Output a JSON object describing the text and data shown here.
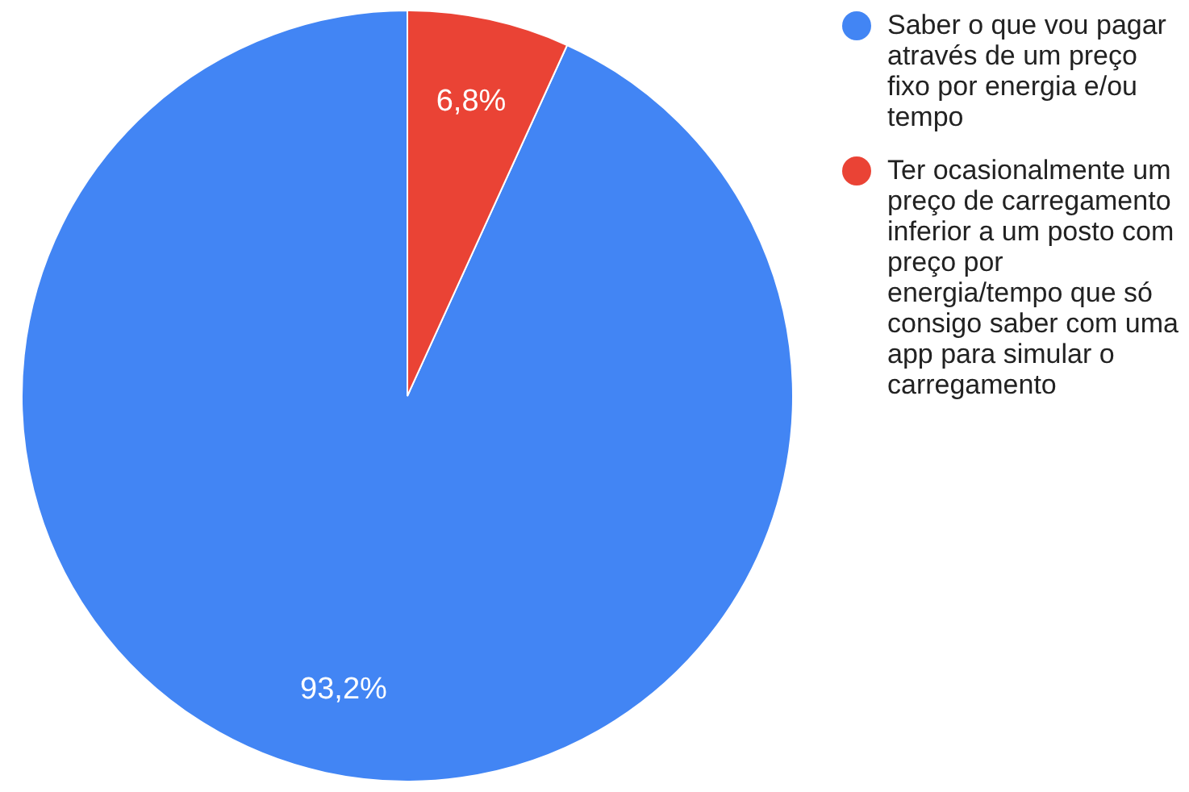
{
  "chart_data": {
    "type": "pie",
    "categories": [
      "Saber o que vou pagar através de um preço fixo por energia e/ou tempo",
      "Ter ocasionalmente um preço de carregamento inferior a um posto com preço por energia/tempo que só consigo saber com uma app para simular o carregamento"
    ],
    "values": [
      93.2,
      6.8
    ],
    "colors": [
      "#4285f4",
      "#ea4335"
    ],
    "value_labels": [
      "93,2%",
      "6,8%"
    ],
    "legend": "right"
  }
}
